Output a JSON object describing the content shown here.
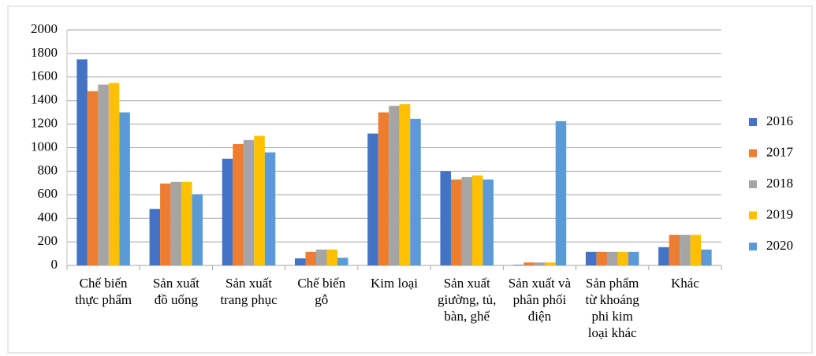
{
  "chart_data": {
    "type": "bar",
    "categories": [
      "Chế biến thực phẩm",
      "Sản xuất đồ uống",
      "Sản xuất trang phục",
      "Chế biến gỗ",
      "Kim loại",
      "Sản xuất giường, tủ, bàn, ghế",
      "Sản xuất và phân phối điện",
      "Sản phẩm từ khoáng phi kim loại khác",
      "Khác"
    ],
    "series": [
      {
        "name": "2016",
        "color": "#4472c4",
        "values": [
          1750,
          480,
          905,
          60,
          1120,
          800,
          5,
          115,
          155
        ]
      },
      {
        "name": "2017",
        "color": "#ed7d31",
        "values": [
          1480,
          695,
          1030,
          115,
          1300,
          730,
          25,
          115,
          260
        ]
      },
      {
        "name": "2018",
        "color": "#a5a5a5",
        "values": [
          1535,
          710,
          1065,
          135,
          1355,
          750,
          25,
          115,
          260
        ]
      },
      {
        "name": "2019",
        "color": "#ffc000",
        "values": [
          1550,
          710,
          1100,
          135,
          1370,
          765,
          25,
          115,
          260
        ]
      },
      {
        "name": "2020",
        "color": "#5b9bd5",
        "values": [
          1300,
          605,
          960,
          65,
          1245,
          730,
          1225,
          115,
          135
        ]
      }
    ],
    "ylim": [
      0,
      2000
    ],
    "yticks": [
      0,
      200,
      400,
      600,
      800,
      1000,
      1200,
      1400,
      1600,
      1800,
      2000
    ],
    "grid": true,
    "legend": "right"
  }
}
